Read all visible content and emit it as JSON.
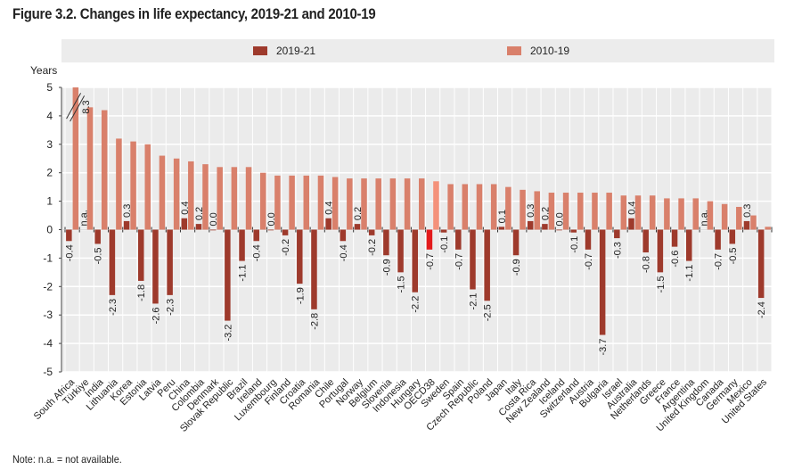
{
  "chart_data": {
    "type": "bar",
    "title": "Figure 3.2. Changes in life expectancy, 2019-21 and 2010-19",
    "xlabel": "",
    "ylabel": "Years",
    "ylim": [
      -5,
      5
    ],
    "yticks": [
      "5",
      "4",
      "3",
      "2",
      "1",
      "0",
      "-1",
      "-2",
      "-3",
      "-4",
      "-5"
    ],
    "grid": true,
    "legend_position": "top",
    "categories": [
      "South Africa",
      "Türkiye",
      "India",
      "Lithuania",
      "Korea",
      "Estonia",
      "Latvia",
      "Peru",
      "China",
      "Colombia",
      "Denmark",
      "Slovak Republic",
      "Brazil",
      "Ireland",
      "Luxembourg",
      "Finland",
      "Croatia",
      "Romania",
      "Chile",
      "Portugal",
      "Norway",
      "Belgium",
      "Slovenia",
      "Indonesia",
      "Hungary",
      "OECD38",
      "Sweden",
      "Spain",
      "Czech Republic",
      "Poland",
      "Japan",
      "Italy",
      "Costa Rica",
      "New Zealand",
      "Iceland",
      "Switzerland",
      "Austria",
      "Bulgaria",
      "Israel",
      "Australia",
      "Netherlands",
      "Greece",
      "France",
      "Argentina",
      "United Kingdom",
      "Canada",
      "Germany",
      "Mexico",
      "United States"
    ],
    "highlight_category": "OECD38",
    "series": [
      {
        "name": "2019-21",
        "color": "#9e3a2c",
        "highlight_color": "#e31a1c",
        "values": [
          -0.4,
          null,
          -0.5,
          -2.3,
          0.3,
          -1.8,
          -2.6,
          -2.3,
          0.4,
          0.2,
          0.0,
          -3.2,
          -1.1,
          -0.4,
          0.0,
          -0.2,
          -1.9,
          -2.8,
          0.4,
          -0.4,
          0.2,
          -0.2,
          -0.9,
          -1.5,
          -2.2,
          -0.7,
          -0.1,
          -0.7,
          -2.1,
          -2.5,
          0.1,
          -0.9,
          0.3,
          0.2,
          0.0,
          -0.1,
          -0.7,
          -3.7,
          -0.3,
          0.4,
          -0.8,
          -1.5,
          -0.6,
          -1.1,
          null,
          -0.7,
          -0.5,
          0.3,
          -2.4
        ],
        "labels": [
          "-0.4",
          "n.a.",
          "-0.5",
          "-2.3",
          "0.3",
          "-1.8",
          "-2.6",
          "-2.3",
          "0.4",
          "0.2",
          "0.0",
          "-3.2",
          "-1.1",
          "-0.4",
          "0.0",
          "-0.2",
          "-1.9",
          "-2.8",
          "0.4",
          "-0.4",
          "0.2",
          "-0.2",
          "-0.9",
          "-1.5",
          "-2.2",
          "-0.7",
          "-0.1",
          "-0.7",
          "-2.1",
          "-2.5",
          "0.1",
          "-0.9",
          "0.3",
          "0.2",
          "0.0",
          "-0.1",
          "-0.7",
          "-3.7",
          "-0.3",
          "0.4",
          "-0.8",
          "-1.5",
          "-0.6",
          "-1.1",
          "n.a.",
          "-0.7",
          "-0.5",
          "0.3",
          "-2.4"
        ]
      },
      {
        "name": "2010-19",
        "color": "#d9806b",
        "highlight_color": "#f4917a",
        "values": [
          8.3,
          4.3,
          4.2,
          3.2,
          3.1,
          3.0,
          2.6,
          2.5,
          2.4,
          2.3,
          2.2,
          2.2,
          2.2,
          2.0,
          1.9,
          1.9,
          1.9,
          1.9,
          1.85,
          1.8,
          1.8,
          1.8,
          1.8,
          1.8,
          1.8,
          1.7,
          1.6,
          1.6,
          1.6,
          1.6,
          1.5,
          1.4,
          1.35,
          1.3,
          1.3,
          1.3,
          1.3,
          1.3,
          1.2,
          1.2,
          1.2,
          1.1,
          1.1,
          1.1,
          1.0,
          0.9,
          0.8,
          0.5,
          0.1
        ],
        "annotations": [
          {
            "category": "South Africa",
            "label": "8.3",
            "note": "axis break"
          }
        ]
      }
    ]
  },
  "note": "Note: n.a. = not available."
}
